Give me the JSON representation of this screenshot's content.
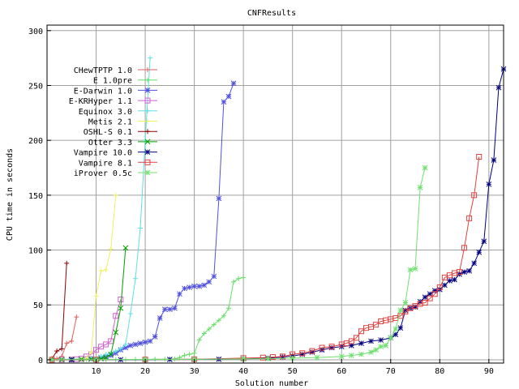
{
  "chart_data": {
    "type": "line",
    "title": "CNFResults",
    "xlabel": "Solution number",
    "ylabel": "CPU time in seconds",
    "xlim": [
      0,
      93
    ],
    "ylim": [
      -3,
      305
    ],
    "x_ticks": [
      10,
      20,
      30,
      40,
      50,
      60,
      70,
      80,
      90
    ],
    "y_ticks": [
      0,
      50,
      100,
      150,
      200,
      250,
      300
    ],
    "grid": true,
    "legend_position": "top-left",
    "series": [
      {
        "name": "CHewTPTP 1.0",
        "color": "#e06060",
        "marker": "plus",
        "x": [
          1,
          2,
          3,
          4,
          5,
          6
        ],
        "y": [
          0.5,
          1,
          3,
          15,
          17,
          39
        ]
      },
      {
        "name": "E 1.0pre",
        "color": "#66e066",
        "marker": "plus",
        "x": [
          1,
          3,
          5,
          8,
          10,
          12,
          14,
          16,
          18,
          20,
          22,
          24,
          25,
          26,
          27,
          28,
          29,
          30,
          31,
          32,
          33,
          34,
          35,
          36,
          37,
          38,
          39,
          40
        ],
        "y": [
          0.1,
          0.1,
          0.1,
          0.1,
          0.2,
          0.2,
          0.2,
          0.2,
          0.3,
          0.3,
          0.5,
          0.5,
          0.6,
          0.8,
          2,
          4,
          5,
          6,
          18,
          24,
          28,
          32,
          36,
          40,
          47,
          71,
          74,
          75
        ]
      },
      {
        "name": "E-Darwin 1.0",
        "color": "#5050e0",
        "marker": "star",
        "x": [
          1,
          3,
          5,
          7,
          9,
          11,
          12,
          13,
          14,
          15,
          16,
          17,
          18,
          19,
          20,
          21,
          22,
          23,
          24,
          25,
          26,
          27,
          28,
          29,
          30,
          31,
          32,
          33,
          34,
          35,
          36,
          37,
          38
        ],
        "y": [
          0.1,
          0.1,
          0.2,
          0.3,
          1,
          2,
          3,
          4,
          6,
          9,
          11,
          13,
          14,
          15,
          16,
          17,
          21,
          38,
          46,
          46,
          47,
          60,
          65,
          66,
          67,
          67,
          68,
          71,
          76,
          147,
          235,
          240,
          252
        ]
      },
      {
        "name": "E-KRHyper 1.1",
        "color": "#d060d0",
        "marker": "square",
        "x": [
          1,
          3,
          5,
          6,
          7,
          8,
          9,
          10,
          11,
          12,
          13,
          14,
          15
        ],
        "y": [
          0.1,
          0.2,
          0.3,
          0.5,
          1,
          3,
          5,
          9,
          12,
          14,
          17,
          40,
          55
        ]
      },
      {
        "name": "Equinox 3.0",
        "color": "#60e0e0",
        "marker": "plus",
        "x": [
          1,
          3,
          5,
          7,
          9,
          11,
          12,
          13,
          14,
          15,
          16,
          17,
          18,
          19,
          20,
          21
        ],
        "y": [
          0.2,
          0.4,
          0.6,
          1,
          1.5,
          3,
          5,
          6,
          8,
          10,
          14,
          42,
          74,
          120,
          200,
          275
        ]
      },
      {
        "name": "Metis 2.1",
        "color": "#f0f060",
        "marker": "plus",
        "x": [
          1,
          3,
          5,
          7,
          8,
          9,
          10,
          11,
          12,
          13,
          14
        ],
        "y": [
          0.1,
          0.2,
          0.3,
          0.6,
          1,
          7,
          58,
          81,
          82,
          101,
          150
        ]
      },
      {
        "name": "OSHL-S 0.1",
        "color": "#900000",
        "marker": "plus",
        "x": [
          1,
          2,
          3,
          4
        ],
        "y": [
          1,
          8,
          10,
          88
        ]
      },
      {
        "name": "Otter 3.3",
        "color": "#00a000",
        "marker": "x",
        "x": [
          1,
          3,
          5,
          7,
          9,
          11,
          12,
          13,
          14,
          15,
          16
        ],
        "y": [
          0.1,
          0.2,
          0.3,
          0.4,
          0.5,
          1,
          2,
          5,
          25,
          47,
          102
        ]
      },
      {
        "name": "Vampire 10.0",
        "color": "#000080",
        "marker": "star",
        "x": [
          1,
          5,
          10,
          15,
          20,
          25,
          30,
          35,
          40,
          45,
          48,
          50,
          52,
          54,
          56,
          58,
          60,
          62,
          64,
          66,
          68,
          70,
          71,
          72,
          73,
          74,
          75,
          76,
          77,
          78,
          79,
          80,
          81,
          82,
          83,
          84,
          85,
          86,
          87,
          88,
          89,
          90,
          91,
          92,
          93
        ],
        "y": [
          0,
          0,
          0.1,
          0.1,
          0.2,
          0.3,
          0.4,
          0.5,
          0.8,
          1.5,
          2.5,
          3.5,
          5,
          7,
          9,
          11,
          12,
          13,
          15,
          17,
          18,
          20,
          23,
          29,
          45,
          47,
          48,
          53,
          57,
          60,
          63,
          64,
          68,
          72,
          73,
          78,
          80,
          81,
          88,
          98,
          108,
          160,
          182,
          248,
          265
        ]
      },
      {
        "name": "Vampire 8.1",
        "color": "#e04040",
        "marker": "square",
        "x": [
          1,
          10,
          20,
          30,
          40,
          44,
          46,
          48,
          50,
          52,
          54,
          56,
          58,
          60,
          61,
          62,
          63,
          64,
          65,
          66,
          67,
          68,
          69,
          70,
          71,
          72,
          73,
          74,
          75,
          76,
          77,
          78,
          79,
          80,
          81,
          82,
          83,
          84,
          85,
          86,
          87,
          88
        ],
        "y": [
          0.1,
          0.2,
          0.3,
          0.5,
          1.5,
          2,
          2.5,
          3,
          5,
          6,
          8,
          11,
          12,
          14,
          15,
          17,
          20,
          26,
          29,
          30,
          32,
          35,
          36,
          37,
          38,
          40,
          44,
          47,
          49,
          51,
          52,
          56,
          60,
          66,
          75,
          77,
          79,
          80,
          102,
          129,
          150,
          185
        ]
      },
      {
        "name": "iProver 0.5c",
        "color": "#70e070",
        "marker": "star",
        "x": [
          1,
          10,
          20,
          30,
          40,
          45,
          50,
          55,
          60,
          62,
          64,
          66,
          67,
          68,
          69,
          70,
          71,
          72,
          73,
          74,
          75,
          76,
          77
        ],
        "y": [
          0.1,
          0.2,
          0.3,
          0.4,
          0.8,
          1,
          1.5,
          2,
          3,
          4,
          5,
          7,
          9,
          12,
          13,
          20,
          28,
          45,
          52,
          82,
          83,
          157,
          175
        ]
      }
    ]
  }
}
